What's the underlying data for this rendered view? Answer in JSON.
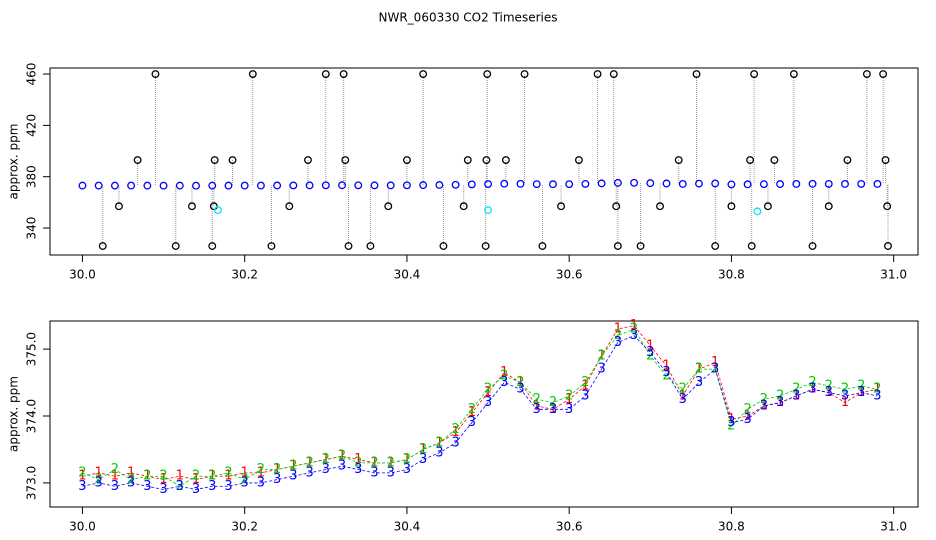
{
  "chart_data": [
    {
      "type": "scatter",
      "title": "NWR_060330  CO2 Timeseries",
      "ylabel": "approx. ppm",
      "xlim": [
        29.96,
        31.03
      ],
      "ylim": [
        319,
        464.7
      ],
      "xticks": [
        {
          "value": 30,
          "label": "30.0"
        },
        {
          "value": 30.2,
          "label": "30.2"
        },
        {
          "value": 30.4,
          "label": "30.4"
        },
        {
          "value": 30.6,
          "label": "30.6"
        },
        {
          "value": 30.8,
          "label": "30.8"
        },
        {
          "value": 31,
          "label": "31.0"
        }
      ],
      "yticks": [
        340,
        380,
        420,
        460
      ],
      "x": [
        30.0,
        30.02,
        30.04,
        30.06,
        30.08,
        30.1,
        30.12,
        30.14,
        30.16,
        30.18,
        30.2,
        30.22,
        30.24,
        30.26,
        30.28,
        30.3,
        30.32,
        30.34,
        30.36,
        30.38,
        30.4,
        30.42,
        30.44,
        30.46,
        30.48,
        30.5,
        30.52,
        30.54,
        30.56,
        30.58,
        30.6,
        30.62,
        30.64,
        30.66,
        30.68,
        30.7,
        30.72,
        30.74,
        30.76,
        30.78,
        30.8,
        30.82,
        30.84,
        30.86,
        30.88,
        30.9,
        30.92,
        30.94,
        30.96,
        30.98
      ],
      "series": [
        {
          "color": "#0000ff",
          "values": [
            373.05,
            373.1,
            373.05,
            373.1,
            373.05,
            373.0,
            373.05,
            373.0,
            373.05,
            373.05,
            373.1,
            373.1,
            373.15,
            373.2,
            373.25,
            373.3,
            373.35,
            373.3,
            373.25,
            373.25,
            373.3,
            373.45,
            373.55,
            373.7,
            374.0,
            374.3,
            374.55,
            374.45,
            374.2,
            374.15,
            374.2,
            374.4,
            374.8,
            375.2,
            375.25,
            375.0,
            374.7,
            374.35,
            374.6,
            374.75,
            374.0,
            374.05,
            374.2,
            374.25,
            374.35,
            374.45,
            374.4,
            374.35,
            374.4,
            374.35
          ]
        },
        {
          "color": "#000000",
          "drops": true,
          "x": [
            30.025,
            30.045,
            30.068,
            30.09,
            30.115,
            30.135,
            30.16,
            30.162,
            30.163,
            30.185,
            30.21,
            30.233,
            30.255,
            30.278,
            30.3,
            30.322,
            30.324,
            30.328,
            30.355,
            30.377,
            30.4,
            30.42,
            30.445,
            30.47,
            30.475,
            30.497,
            30.498,
            30.499,
            30.522,
            30.545,
            30.567,
            30.59,
            30.612,
            30.635,
            30.655,
            30.658,
            30.66,
            30.688,
            30.712,
            30.735,
            30.757,
            30.78,
            30.8,
            30.823,
            30.825,
            30.828,
            30.845,
            30.853,
            30.877,
            30.9,
            30.92,
            30.943,
            30.967,
            30.987,
            30.99,
            30.992,
            30.993
          ],
          "values": [
            326,
            357,
            393,
            460,
            326,
            357,
            326,
            357,
            393,
            393,
            460,
            326,
            357,
            393,
            460,
            460,
            393,
            326,
            326,
            357,
            393,
            460,
            326,
            357,
            393,
            326,
            393,
            460,
            393,
            460,
            326,
            357,
            393,
            460,
            460,
            357,
            326,
            326,
            357,
            393,
            460,
            326,
            357,
            393,
            326,
            460,
            357,
            393,
            460,
            326,
            357,
            393,
            460,
            460,
            393,
            357,
            326
          ]
        },
        {
          "color": "#00e5ee",
          "x": [
            30.167,
            30.5,
            30.832
          ],
          "values": [
            354,
            354,
            353
          ]
        }
      ]
    },
    {
      "type": "scatter",
      "ylabel": "approx. ppm",
      "xlim": [
        29.96,
        31.03
      ],
      "ylim": [
        372.64,
        375.42
      ],
      "xticks": [
        {
          "value": 30,
          "label": "30.0"
        },
        {
          "value": 30.2,
          "label": "30.2"
        },
        {
          "value": 30.4,
          "label": "30.4"
        },
        {
          "value": 30.6,
          "label": "30.6"
        },
        {
          "value": 30.8,
          "label": "30.8"
        },
        {
          "value": 31,
          "label": "31.0"
        }
      ],
      "yticks": [
        {
          "value": 373,
          "label": "373.0"
        },
        {
          "value": 374,
          "label": "374.0"
        },
        {
          "value": 375,
          "label": "375.0"
        }
      ],
      "x": [
        30.0,
        30.02,
        30.04,
        30.06,
        30.08,
        30.1,
        30.12,
        30.14,
        30.16,
        30.18,
        30.2,
        30.22,
        30.24,
        30.26,
        30.28,
        30.3,
        30.32,
        30.34,
        30.36,
        30.38,
        30.4,
        30.42,
        30.44,
        30.46,
        30.48,
        30.5,
        30.52,
        30.54,
        30.56,
        30.58,
        30.6,
        30.62,
        30.64,
        30.66,
        30.68,
        30.7,
        30.72,
        30.74,
        30.76,
        30.78,
        30.8,
        30.82,
        30.84,
        30.86,
        30.88,
        30.9,
        30.92,
        30.94,
        30.96,
        30.98
      ],
      "series": [
        {
          "color": "#ff0000",
          "marker": "1",
          "line": true,
          "values": [
            373.1,
            373.15,
            373.1,
            373.15,
            373.1,
            373.05,
            373.1,
            373.05,
            373.1,
            373.1,
            373.15,
            373.15,
            373.2,
            373.25,
            373.3,
            373.35,
            373.4,
            373.35,
            373.3,
            373.3,
            373.35,
            373.5,
            373.6,
            373.75,
            374.05,
            374.35,
            374.65,
            374.5,
            374.15,
            374.1,
            374.25,
            374.45,
            374.9,
            375.3,
            375.35,
            375.05,
            374.75,
            374.3,
            374.7,
            374.8,
            373.95,
            374.0,
            374.15,
            374.2,
            374.3,
            374.4,
            374.35,
            374.2,
            374.35,
            374.4
          ]
        },
        {
          "color": "#00cd00",
          "marker": "2",
          "line": true,
          "values": [
            373.15,
            373.05,
            373.2,
            373.05,
            373.1,
            373.1,
            372.95,
            373.1,
            373.1,
            373.15,
            373.05,
            373.2,
            373.2,
            373.25,
            373.3,
            373.35,
            373.4,
            373.3,
            373.3,
            373.3,
            373.35,
            373.5,
            373.6,
            373.8,
            374.1,
            374.4,
            374.6,
            374.5,
            374.25,
            374.2,
            374.3,
            374.5,
            374.9,
            375.2,
            375.3,
            374.9,
            374.6,
            374.4,
            374.7,
            374.7,
            373.85,
            374.1,
            374.25,
            374.3,
            374.4,
            374.5,
            374.45,
            374.4,
            374.45,
            374.4
          ]
        },
        {
          "color": "#0000ff",
          "marker": "3",
          "line": true,
          "values": [
            372.95,
            373.0,
            372.95,
            373.0,
            372.95,
            372.9,
            372.95,
            372.9,
            372.95,
            372.95,
            373.0,
            373.0,
            373.05,
            373.1,
            373.15,
            373.2,
            373.25,
            373.2,
            373.15,
            373.15,
            373.2,
            373.35,
            373.45,
            373.6,
            373.9,
            374.2,
            374.5,
            374.4,
            374.1,
            374.1,
            374.1,
            374.3,
            374.7,
            375.1,
            375.2,
            374.95,
            374.65,
            374.25,
            374.5,
            374.7,
            373.9,
            373.95,
            374.15,
            374.2,
            374.3,
            374.4,
            374.35,
            374.3,
            374.35,
            374.3
          ]
        }
      ]
    }
  ]
}
